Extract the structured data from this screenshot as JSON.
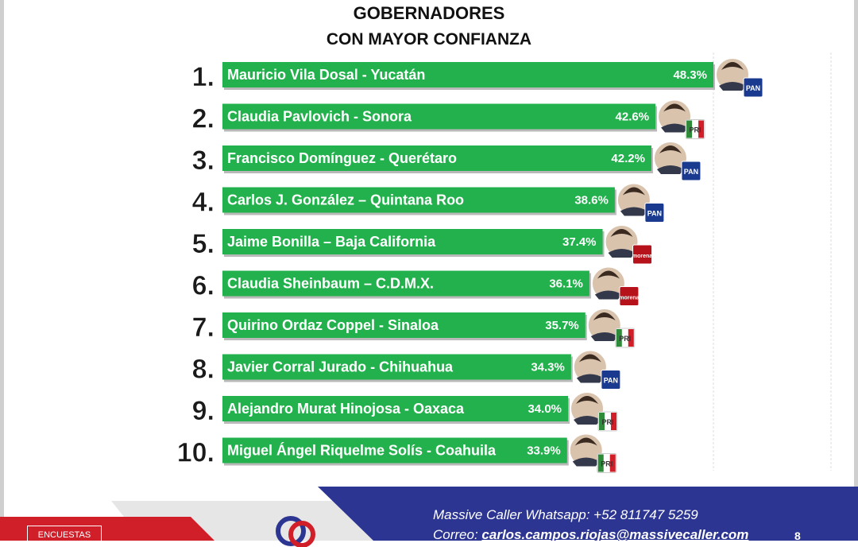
{
  "title_line1": "GOBERNADORES",
  "title_line2": "CON MAYOR CONFIANZA",
  "chart_data": {
    "type": "bar",
    "orientation": "horizontal",
    "title": "GOBERNADORES CON MAYOR CONFIANZA",
    "ranks": [
      "1.",
      "2.",
      "3.",
      "4.",
      "5.",
      "6.",
      "7.",
      "8.",
      "9.",
      "10."
    ],
    "categories": [
      "Mauricio Vila Dosal - Yucatán",
      "Claudia Pavlovich - Sonora",
      "Francisco Domínguez - Querétaro",
      "Carlos J. González – Quintana Roo",
      "Jaime Bonilla – Baja California",
      "Claudia Sheinbaum – C.D.M.X.",
      "Quirino Ordaz Coppel - Sinaloa",
      "Javier Corral Jurado - Chihuahua",
      "Alejandro Murat Hinojosa - Oaxaca",
      "Miguel Ángel Riquelme Solís - Coahuila"
    ],
    "values": [
      48.3,
      42.6,
      42.2,
      38.6,
      37.4,
      36.1,
      35.7,
      34.3,
      34.0,
      33.9
    ],
    "value_labels": [
      "48.3%",
      "42.6%",
      "42.2%",
      "38.6%",
      "37.4%",
      "36.1%",
      "35.7%",
      "34.3%",
      "34.0%",
      "33.9%"
    ],
    "parties": [
      "PAN",
      "PRI",
      "PAN",
      "PAN",
      "morena",
      "morena",
      "PRI",
      "PAN",
      "PRI",
      "PRI"
    ],
    "xlim": [
      0,
      48.3
    ],
    "bar_color": "#22b14c",
    "grid": true
  },
  "party_colors": {
    "PAN": "#1a3a8f",
    "PRI": "#2e8b3a",
    "morena": "#b5121b"
  },
  "footer": {
    "whatsapp_line": "Massive Caller Whatsapp: +52  811747 5259",
    "email_prefix": "Correo: ",
    "email": "carlos.campos.riojas@massivecaller.com",
    "page_number": "8",
    "badge_text": "ENCUESTAS"
  },
  "colors": {
    "footer_navy": "#2c3591",
    "footer_gray": "#e6e6e6",
    "footer_red": "#d11f2a"
  }
}
